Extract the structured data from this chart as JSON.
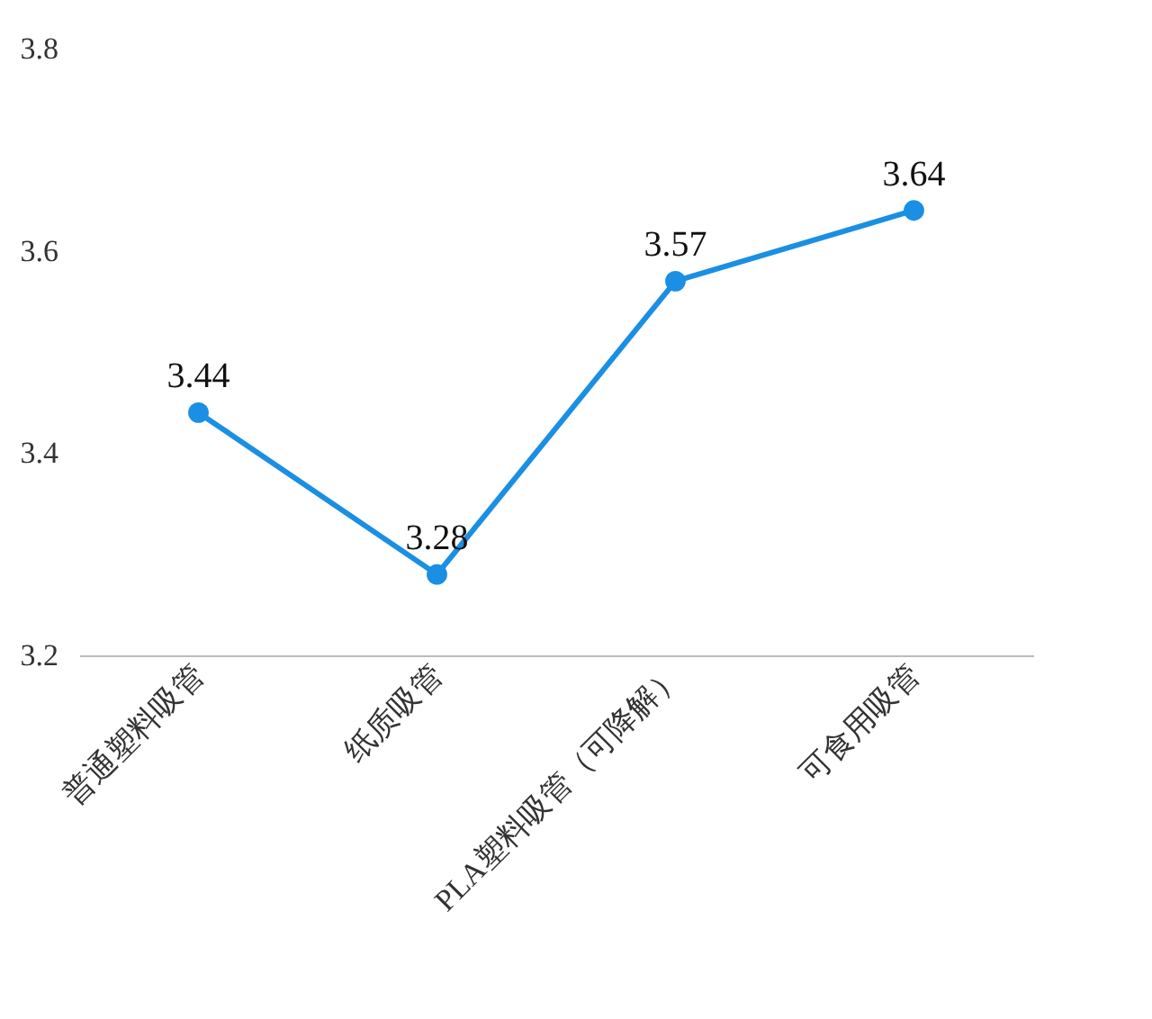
{
  "chart_data": {
    "type": "line",
    "categories": [
      "普通塑料吸管",
      "纸质吸管",
      "PLA塑料吸管（可降解）",
      "可食用吸管"
    ],
    "series": [
      {
        "color": "#1a8fe3",
        "values": [
          3.44,
          3.28,
          3.57,
          3.64
        ]
      }
    ],
    "ylim": [
      3.2,
      3.8
    ],
    "yticks": [
      3.2,
      3.4,
      3.6,
      3.8
    ],
    "grid": false,
    "marker": "circle",
    "line_style": "solid",
    "data_labels": true
  }
}
